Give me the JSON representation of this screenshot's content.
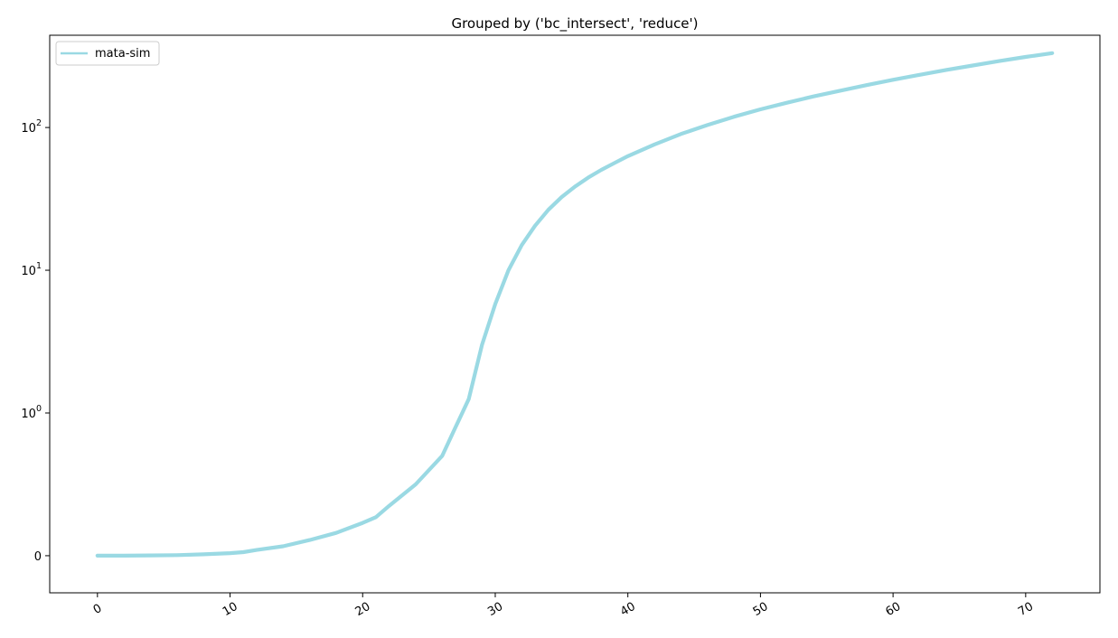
{
  "chart_data": {
    "type": "line",
    "title": "Grouped by ('bc_intersect', 'reduce')",
    "xlabel": "",
    "ylabel": "",
    "xlim": [
      -3.6,
      75.6
    ],
    "yscale": "symlog",
    "ylim": [
      -0.26,
      443
    ],
    "grid": false,
    "legend_position": "top-left",
    "x_ticks": [
      {
        "value": 0,
        "label": "0"
      },
      {
        "value": 10,
        "label": "10"
      },
      {
        "value": 20,
        "label": "20"
      },
      {
        "value": 30,
        "label": "30"
      },
      {
        "value": 40,
        "label": "40"
      },
      {
        "value": 50,
        "label": "50"
      },
      {
        "value": 60,
        "label": "60"
      },
      {
        "value": 70,
        "label": "70"
      }
    ],
    "y_ticks": [
      {
        "value": 0,
        "base": "0",
        "exp": ""
      },
      {
        "value": 1,
        "base": "10",
        "exp": "0"
      },
      {
        "value": 10,
        "base": "10",
        "exp": "1"
      },
      {
        "value": 100,
        "base": "10",
        "exp": "2"
      }
    ],
    "series": [
      {
        "name": "mata-sim",
        "color": "#9ad9e3",
        "points": [
          [
            0,
            0.0
          ],
          [
            2,
            0.0
          ],
          [
            4,
            0.002
          ],
          [
            6,
            0.004
          ],
          [
            8,
            0.01
          ],
          [
            10,
            0.018
          ],
          [
            11,
            0.025
          ],
          [
            12,
            0.04
          ],
          [
            14,
            0.066
          ],
          [
            16,
            0.11
          ],
          [
            18,
            0.16
          ],
          [
            20,
            0.23
          ],
          [
            21,
            0.27
          ],
          [
            22,
            0.35
          ],
          [
            24,
            0.5
          ],
          [
            26,
            0.7
          ],
          [
            27,
            0.9
          ],
          [
            28,
            1.25
          ],
          [
            29,
            3.0
          ],
          [
            30,
            5.8
          ],
          [
            31,
            10.0
          ],
          [
            32,
            15.0
          ],
          [
            33,
            20.5
          ],
          [
            34,
            26.5
          ],
          [
            35,
            32.5
          ],
          [
            36,
            38.5
          ],
          [
            37,
            44.5
          ],
          [
            38,
            50.5
          ],
          [
            39,
            56.5
          ],
          [
            40,
            63.0
          ],
          [
            42,
            76.0
          ],
          [
            44,
            90.0
          ],
          [
            46,
            104.0
          ],
          [
            48,
            119.0
          ],
          [
            50,
            134.0
          ],
          [
            52,
            149.0
          ],
          [
            54,
            165.0
          ],
          [
            56,
            181.0
          ],
          [
            58,
            198.0
          ],
          [
            60,
            216.0
          ],
          [
            62,
            234.0
          ],
          [
            64,
            253.0
          ],
          [
            66,
            272.0
          ],
          [
            68,
            292.0
          ],
          [
            70,
            312.0
          ],
          [
            72,
            332.0
          ]
        ]
      }
    ]
  }
}
